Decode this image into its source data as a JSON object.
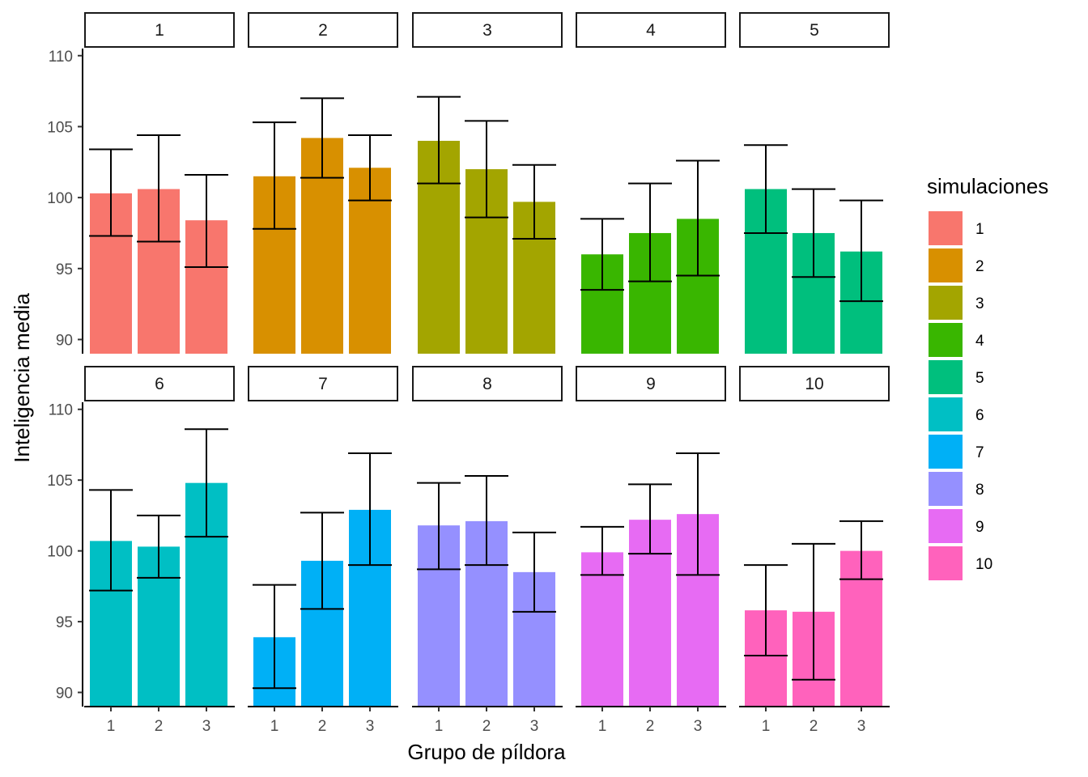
{
  "chart_data": {
    "type": "bar",
    "facet_layout": "2 rows x 5 columns",
    "xlabel": "Grupo de píldora",
    "ylabel": "Inteligencia media",
    "ylim": [
      89,
      110.5
    ],
    "y_ticks": [
      90,
      95,
      100,
      105,
      110
    ],
    "categories": [
      "1",
      "2",
      "3"
    ],
    "error_bars": true,
    "grid": false,
    "legend": {
      "title": "simulaciones",
      "position": "right",
      "entries": [
        "1",
        "2",
        "3",
        "4",
        "5",
        "6",
        "7",
        "8",
        "9",
        "10"
      ],
      "colors": [
        "#F8766D",
        "#D89000",
        "#A3A500",
        "#39B600",
        "#00BF7D",
        "#00BFC4",
        "#00B0F6",
        "#9590FF",
        "#E76BF3",
        "#FF62BC"
      ]
    },
    "panels": [
      {
        "label": "1",
        "values": [
          100.3,
          100.6,
          98.4
        ],
        "lower": [
          97.3,
          96.9,
          95.1
        ],
        "upper": [
          103.4,
          104.4,
          101.6
        ]
      },
      {
        "label": "2",
        "values": [
          101.5,
          104.2,
          102.1
        ],
        "lower": [
          97.8,
          101.4,
          99.8
        ],
        "upper": [
          105.3,
          107.0,
          104.4
        ]
      },
      {
        "label": "3",
        "values": [
          104.0,
          102.0,
          99.7
        ],
        "lower": [
          101.0,
          98.6,
          97.1
        ],
        "upper": [
          107.1,
          105.4,
          102.3
        ]
      },
      {
        "label": "4",
        "values": [
          96.0,
          97.5,
          98.5
        ],
        "lower": [
          93.5,
          94.1,
          94.5
        ],
        "upper": [
          98.5,
          101.0,
          102.6
        ]
      },
      {
        "label": "5",
        "values": [
          100.6,
          97.5,
          96.2
        ],
        "lower": [
          97.5,
          94.4,
          92.7
        ],
        "upper": [
          103.7,
          100.6,
          99.8
        ]
      },
      {
        "label": "6",
        "values": [
          100.7,
          100.3,
          104.8
        ],
        "lower": [
          97.2,
          98.1,
          101.0
        ],
        "upper": [
          104.3,
          102.5,
          108.6
        ]
      },
      {
        "label": "7",
        "values": [
          93.9,
          99.3,
          102.9
        ],
        "lower": [
          90.3,
          95.9,
          99.0
        ],
        "upper": [
          97.6,
          102.7,
          106.9
        ]
      },
      {
        "label": "8",
        "values": [
          101.8,
          102.1,
          98.5
        ],
        "lower": [
          98.7,
          99.0,
          95.7
        ],
        "upper": [
          104.8,
          105.3,
          101.3
        ]
      },
      {
        "label": "9",
        "values": [
          99.9,
          102.2,
          102.6
        ],
        "lower": [
          98.3,
          99.8,
          98.3
        ],
        "upper": [
          101.7,
          104.7,
          106.9
        ]
      },
      {
        "label": "10",
        "values": [
          95.8,
          95.7,
          100.0
        ],
        "lower": [
          92.6,
          90.9,
          98.0
        ],
        "upper": [
          99.0,
          100.5,
          102.1
        ]
      }
    ]
  }
}
